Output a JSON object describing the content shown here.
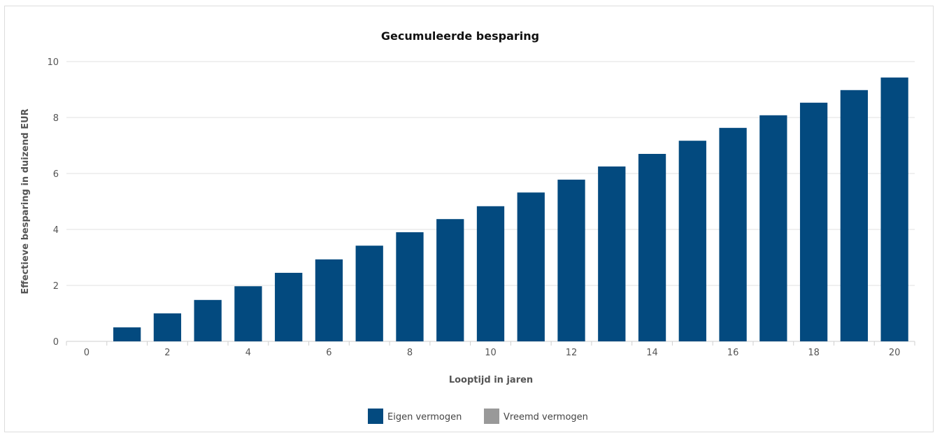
{
  "chart_data": {
    "type": "bar",
    "title": "Gecumuleerde besparing",
    "xlabel": "Looptijd in jaren",
    "ylabel": "Effectieve besparing in duizend EUR",
    "x": [
      0,
      1,
      2,
      3,
      4,
      5,
      6,
      7,
      8,
      9,
      10,
      11,
      12,
      13,
      14,
      15,
      16,
      17,
      18,
      19,
      20
    ],
    "x_tick_labels": [
      "0",
      "2",
      "4",
      "6",
      "8",
      "10",
      "12",
      "14",
      "16",
      "18",
      "20"
    ],
    "x_tick_values": [
      0,
      2,
      4,
      6,
      8,
      10,
      12,
      14,
      16,
      18,
      20
    ],
    "y_ticks": [
      0,
      2,
      4,
      6,
      8,
      10
    ],
    "ylim": [
      0,
      10
    ],
    "grid": true,
    "legend_position": "bottom",
    "series": [
      {
        "name": "Eigen vermogen",
        "color": "#034a7f",
        "values": [
          0,
          0.5,
          1.0,
          1.48,
          1.97,
          2.45,
          2.93,
          3.42,
          3.9,
          4.37,
          4.83,
          5.32,
          5.78,
          6.25,
          6.7,
          7.17,
          7.63,
          8.08,
          8.53,
          8.98,
          9.43
        ]
      },
      {
        "name": "Vreemd vermogen",
        "color": "#999999",
        "values": [
          0,
          0,
          0,
          0,
          0,
          0,
          0,
          0,
          0,
          0,
          0,
          0,
          0,
          0,
          0,
          0,
          0,
          0,
          0,
          0,
          0
        ]
      }
    ]
  }
}
